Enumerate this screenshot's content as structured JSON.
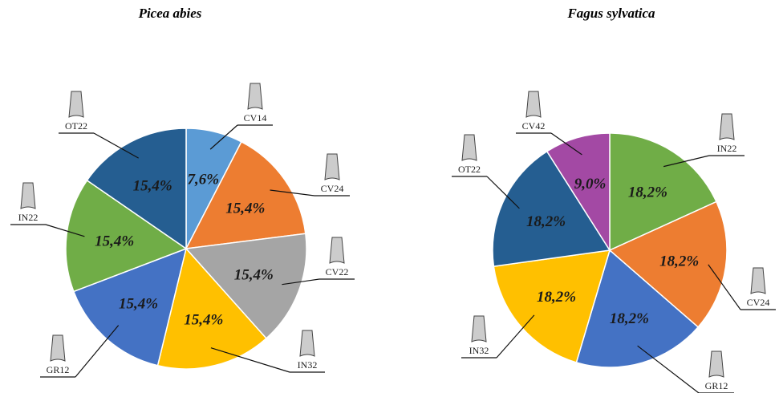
{
  "chart_data": [
    {
      "type": "pie",
      "title": "Picea abies",
      "categories": [
        "CV14",
        "CV24",
        "CV22",
        "IN32",
        "GR12",
        "IN22",
        "OT22"
      ],
      "values": [
        7.6,
        15.4,
        15.4,
        15.4,
        15.4,
        15.4,
        15.4
      ],
      "value_labels": [
        "7,6%",
        "15,4%",
        "15,4%",
        "15,4%",
        "15,4%",
        "15,4%",
        "15,4%"
      ],
      "colors": [
        "#5b9bd5",
        "#ed7d31",
        "#a5a5a5",
        "#ffc000",
        "#4472c4",
        "#70ad47",
        "#255e91"
      ]
    },
    {
      "type": "pie",
      "title": "Fagus sylvatica",
      "categories": [
        "IN22",
        "CV24",
        "GR12",
        "IN32",
        "OT22",
        "CV42"
      ],
      "values": [
        18.2,
        18.2,
        18.2,
        18.2,
        18.2,
        9.0
      ],
      "value_labels": [
        "18,2%",
        "18,2%",
        "18,2%",
        "18,2%",
        "18,2%",
        "9,0%"
      ],
      "colors": [
        "#70ad47",
        "#ed7d31",
        "#4472c4",
        "#ffc000",
        "#255e91",
        "#a349a4"
      ]
    }
  ]
}
